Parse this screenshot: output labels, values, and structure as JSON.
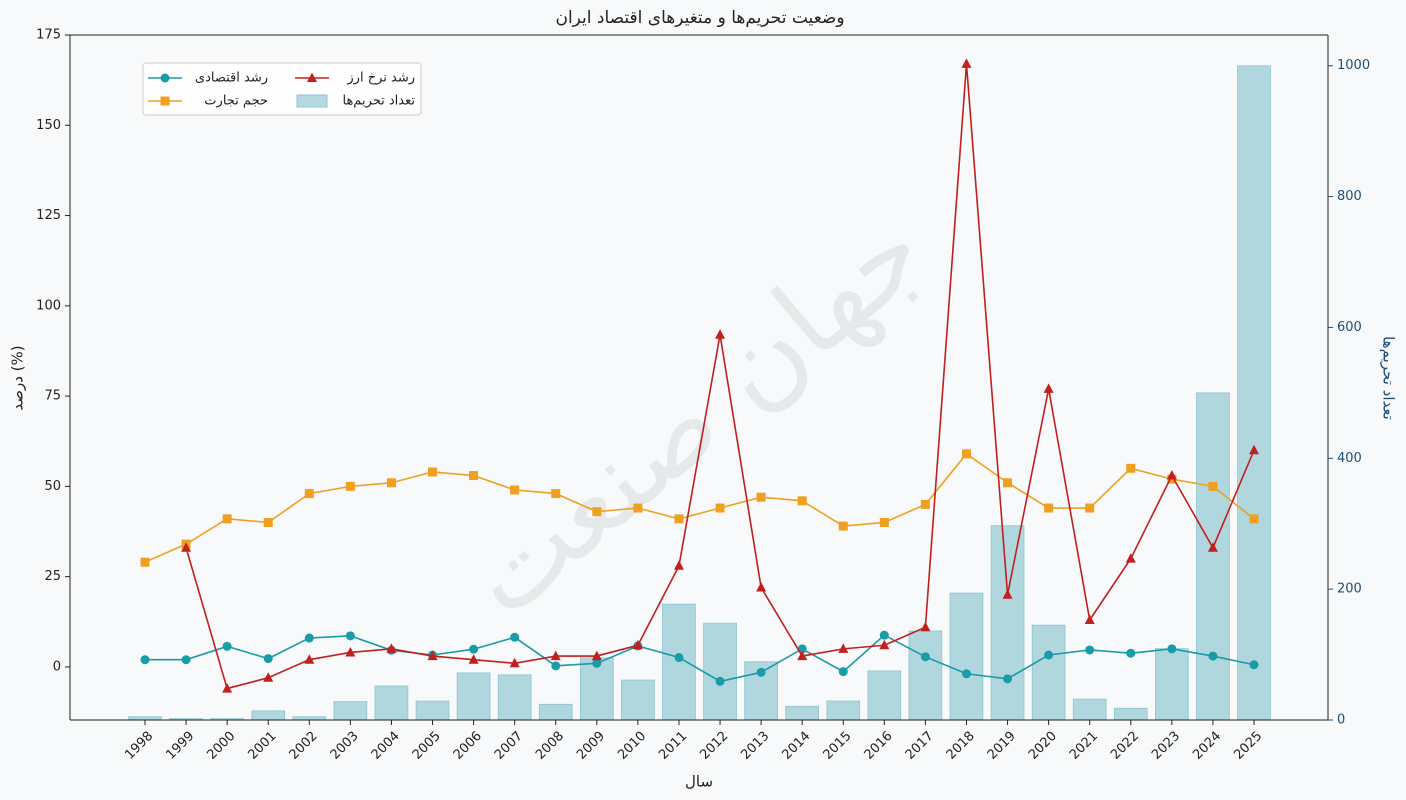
{
  "chart_data": {
    "type": "line",
    "title": "وضعیت تحریم‌ها و متغیرهای اقتصاد ایران",
    "watermark": "جهان صنعت",
    "x_label": "سال",
    "y_label": "درصد (%)",
    "y2_label": "تعداد تحریم‌ها",
    "categories": [
      "1998",
      "1999",
      "2000",
      "2001",
      "2002",
      "2003",
      "2004",
      "2005",
      "2006",
      "2007",
      "2008",
      "2009",
      "2010",
      "2011",
      "2012",
      "2013",
      "2014",
      "2015",
      "2016",
      "2017",
      "2018",
      "2019",
      "2020",
      "2021",
      "2022",
      "2023",
      "2024",
      "2025"
    ],
    "ylim": [
      -14.7,
      175
    ],
    "yticks": [
      0,
      25,
      50,
      75,
      100,
      125,
      150,
      175
    ],
    "y2lim": [
      0,
      1047
    ],
    "y2ticks": [
      0,
      200,
      400,
      600,
      800,
      1000
    ],
    "legend": "upper-left",
    "series": [
      {
        "name": "رشد اقتصادی",
        "type": "line",
        "marker": "circle",
        "color": "#1a9ba8",
        "values": [
          2,
          2,
          5.7,
          2.3,
          8,
          8.6,
          4.6,
          3.3,
          4.9,
          8.2,
          0.3,
          1,
          5.8,
          2.6,
          -4,
          -1.5,
          5,
          -1.3,
          8.8,
          2.8,
          -1.9,
          -3.3,
          3.3,
          4.7,
          3.8,
          5,
          3,
          0.6
        ]
      },
      {
        "name": "حجم تجارت",
        "type": "line",
        "marker": "square",
        "color": "#f0a020",
        "values": [
          29,
          34,
          41,
          40,
          48,
          50,
          51,
          54,
          53,
          49,
          48,
          43,
          44,
          41,
          44,
          47,
          46,
          39,
          40,
          45,
          59,
          51,
          44,
          44,
          55,
          52,
          50,
          41
        ]
      },
      {
        "name": "رشد نرخ ارز",
        "type": "line",
        "marker": "triangle",
        "color": "#c0201e",
        "values": [
          null,
          33,
          -6,
          -3,
          2,
          4,
          5,
          3,
          2,
          1,
          3,
          3,
          6,
          28,
          92,
          22,
          3,
          5,
          6,
          11,
          167,
          20,
          77,
          13,
          30,
          53,
          33,
          60
        ]
      },
      {
        "name": "تعداد تحریم‌ها",
        "type": "bar",
        "axis": "y2",
        "color": "#8cc5d0",
        "values": [
          5,
          2,
          2,
          14,
          5,
          28,
          52,
          29,
          72,
          69,
          24,
          95,
          61,
          177,
          148,
          89,
          21,
          29,
          75,
          136,
          194,
          297,
          145,
          32,
          18,
          109,
          500,
          1000
        ]
      }
    ]
  }
}
